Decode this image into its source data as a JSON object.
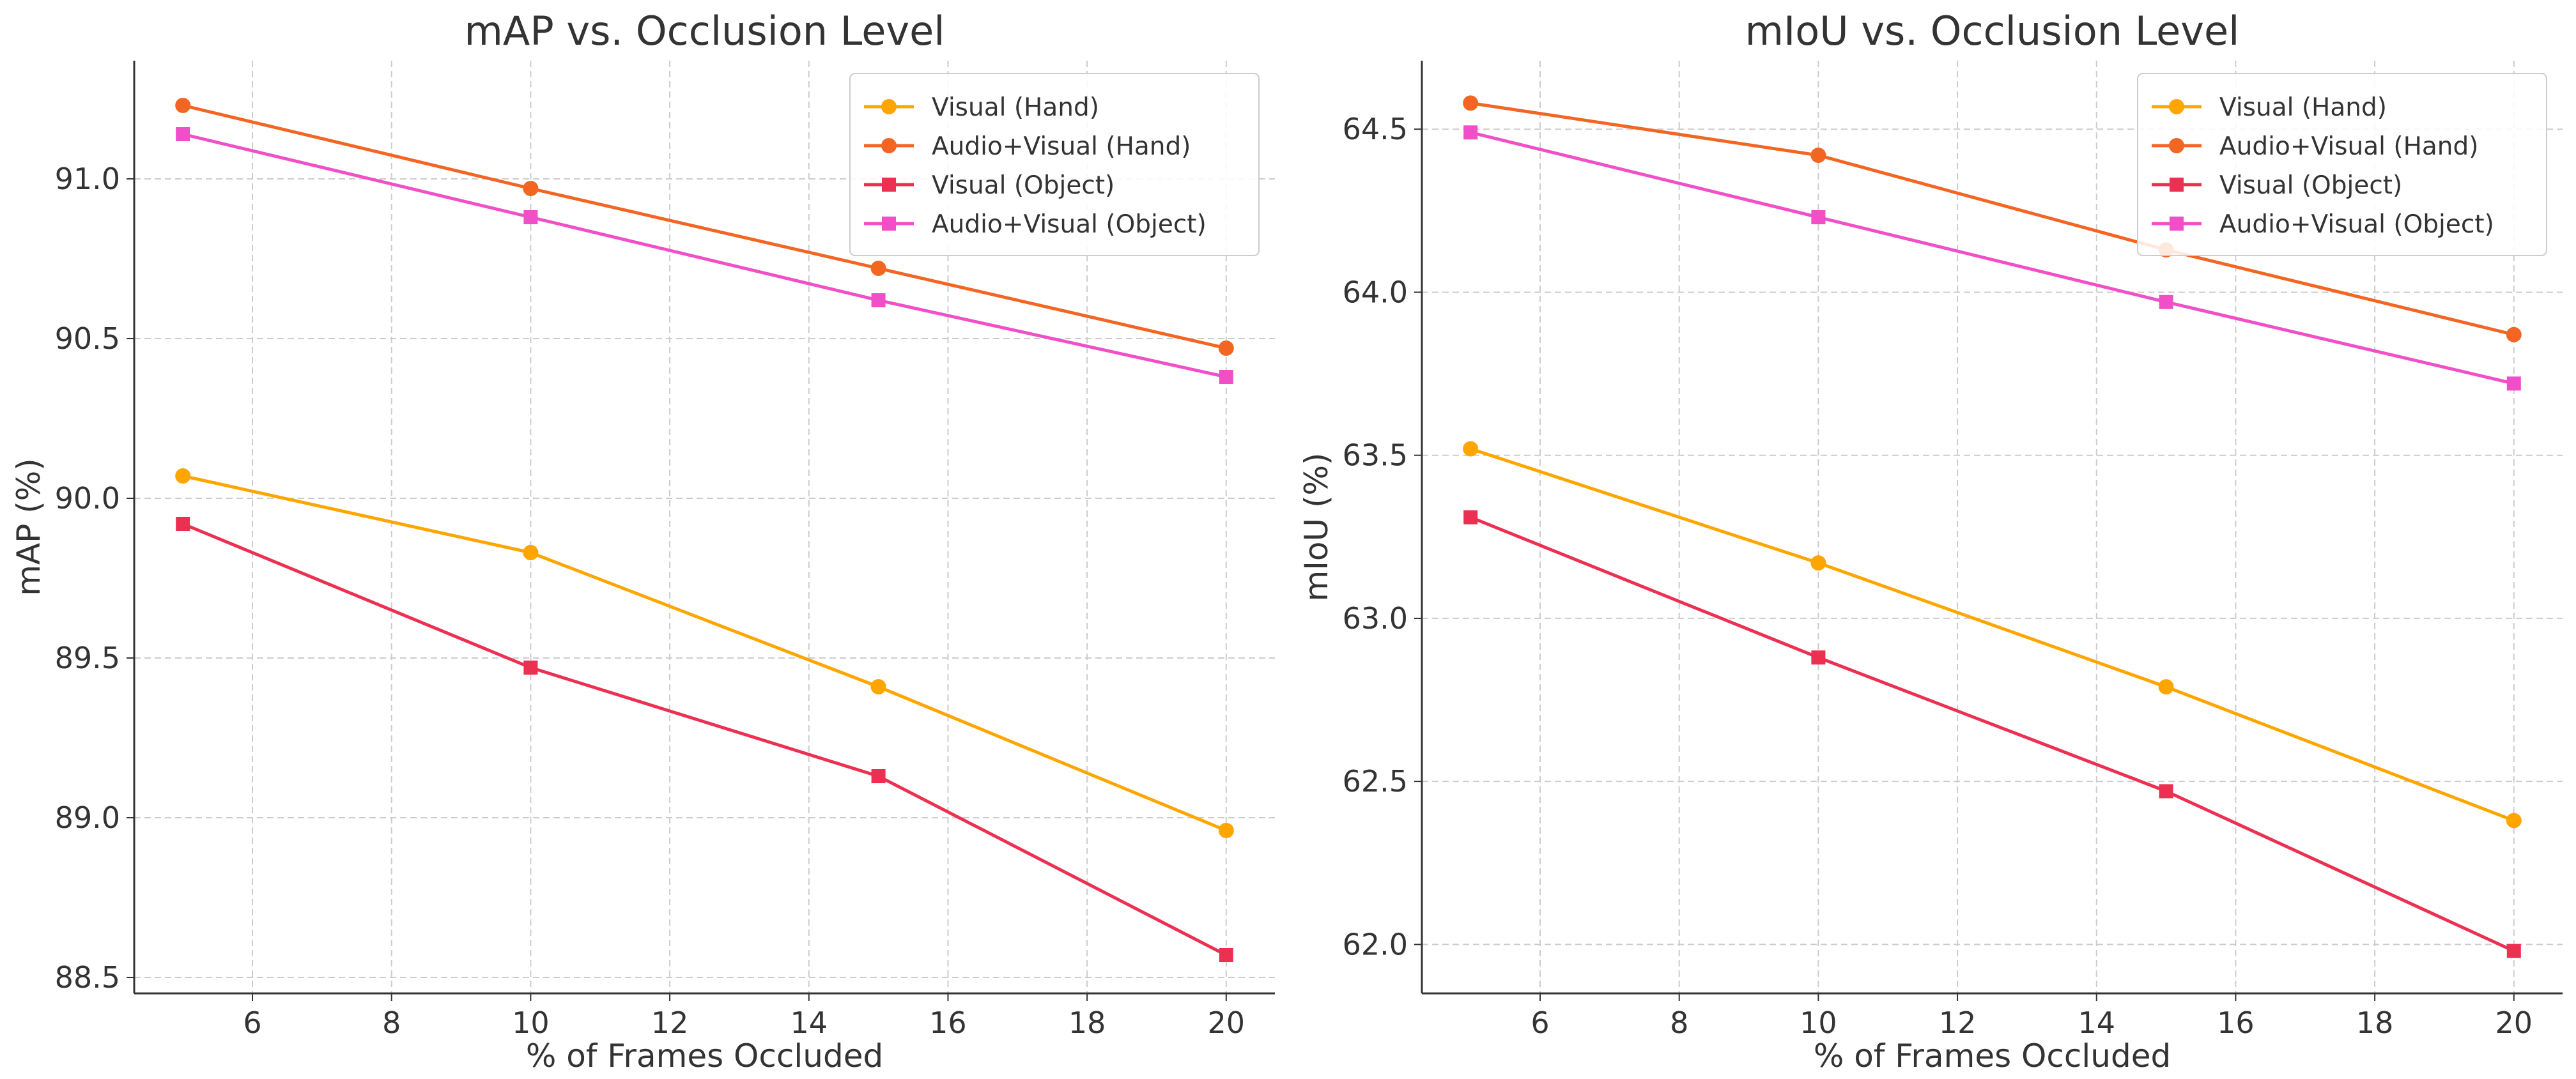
{
  "chart_data": [
    {
      "type": "line",
      "title": "mAP vs. Occlusion Level",
      "xlabel": "% of Frames Occluded",
      "ylabel": "mAP (%)",
      "x": [
        5,
        10,
        15,
        20
      ],
      "xlim": [
        4.3,
        20.7
      ],
      "ylim": [
        88.45,
        91.37
      ],
      "xticks": [
        6,
        8,
        10,
        12,
        14,
        16,
        18,
        20
      ],
      "yticks": [
        88.5,
        89.0,
        89.5,
        90.0,
        90.5,
        91.0
      ],
      "xtick_labels": [
        "6",
        "8",
        "10",
        "12",
        "14",
        "16",
        "18",
        "20"
      ],
      "ytick_labels": [
        "88.5",
        "89.0",
        "89.5",
        "90.0",
        "90.5",
        "91.0"
      ],
      "grid": true,
      "legend_position": "top-right",
      "series": [
        {
          "name": "Visual (Hand)",
          "color": "#FFA500",
          "marker": "circle",
          "values": [
            90.07,
            89.83,
            89.41,
            88.96
          ]
        },
        {
          "name": "Audio+Visual (Hand)",
          "color": "#F26522",
          "marker": "circle",
          "values": [
            91.23,
            90.97,
            90.72,
            90.47
          ]
        },
        {
          "name": "Visual (Object)",
          "color": "#EC3052",
          "marker": "square",
          "values": [
            89.92,
            89.47,
            89.13,
            88.57
          ]
        },
        {
          "name": "Audio+Visual (Object)",
          "color": "#F04FC8",
          "marker": "square",
          "values": [
            91.14,
            90.88,
            90.62,
            90.38
          ]
        }
      ]
    },
    {
      "type": "line",
      "title": "mIoU vs. Occlusion Level",
      "xlabel": "% of Frames Occluded",
      "ylabel": "mIoU (%)",
      "x": [
        5,
        10,
        15,
        20
      ],
      "xlim": [
        4.3,
        20.7
      ],
      "ylim": [
        61.85,
        64.71
      ],
      "xticks": [
        6,
        8,
        10,
        12,
        14,
        16,
        18,
        20
      ],
      "yticks": [
        62.0,
        62.5,
        63.0,
        63.5,
        64.0,
        64.5
      ],
      "xtick_labels": [
        "6",
        "8",
        "10",
        "12",
        "14",
        "16",
        "18",
        "20"
      ],
      "ytick_labels": [
        "62.0",
        "62.5",
        "63.0",
        "63.5",
        "64.0",
        "64.5"
      ],
      "grid": true,
      "legend_position": "top-right",
      "series": [
        {
          "name": "Visual (Hand)",
          "color": "#FFA500",
          "marker": "circle",
          "values": [
            63.52,
            63.17,
            62.79,
            62.38
          ]
        },
        {
          "name": "Audio+Visual (Hand)",
          "color": "#F26522",
          "marker": "circle",
          "values": [
            64.58,
            64.42,
            64.13,
            63.87
          ]
        },
        {
          "name": "Visual (Object)",
          "color": "#EC3052",
          "marker": "square",
          "values": [
            63.31,
            62.88,
            62.47,
            61.98
          ]
        },
        {
          "name": "Audio+Visual (Object)",
          "color": "#F04FC8",
          "marker": "square",
          "values": [
            64.49,
            64.23,
            63.97,
            63.72
          ]
        }
      ]
    }
  ]
}
